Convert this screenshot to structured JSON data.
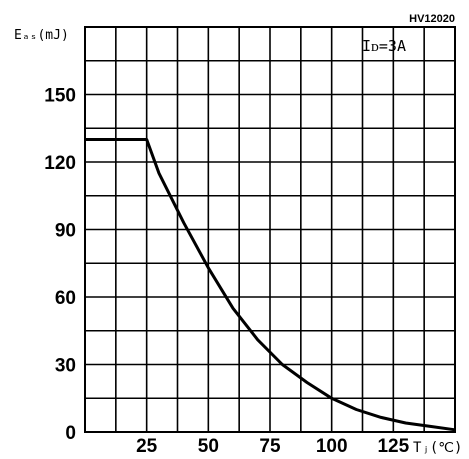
{
  "part_number": "HV12020",
  "chart_data": {
    "type": "line",
    "ylabel": "Eₐₛ(mJ)",
    "xlabel": "Tⱼ(℃)",
    "annotation": "Iᴅ=3A",
    "x_ticks": [
      "25",
      "50",
      "75",
      "100",
      "125"
    ],
    "y_ticks": [
      "0",
      "30",
      "60",
      "90",
      "120",
      "150"
    ],
    "xlim": [
      0,
      150
    ],
    "ylim": [
      0,
      180
    ],
    "grid": true,
    "series": [
      {
        "x": [
          0,
          25,
          30,
          40,
          50,
          60,
          70,
          80,
          90,
          100,
          110,
          120,
          130,
          140,
          150
        ],
        "y": [
          130,
          130,
          115,
          93,
          73,
          55,
          41,
          30,
          22,
          15,
          10,
          6.5,
          4,
          2.5,
          1
        ]
      }
    ]
  }
}
